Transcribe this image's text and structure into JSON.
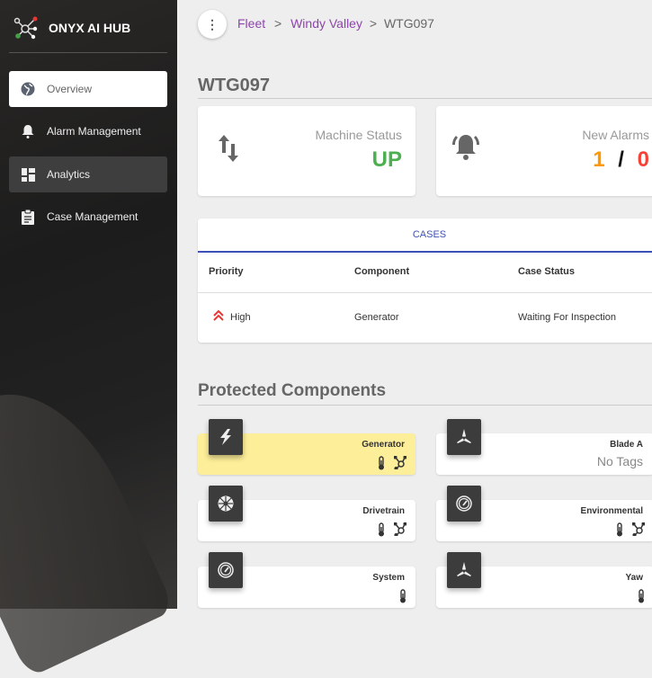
{
  "app": {
    "title": "ONYX AI HUB"
  },
  "sidebar": {
    "items": [
      {
        "label": "Overview",
        "icon": "globe-icon",
        "active": true
      },
      {
        "label": "Alarm Management",
        "icon": "bell-icon"
      },
      {
        "label": "Analytics",
        "icon": "dashboard-icon"
      },
      {
        "label": "Case Management",
        "icon": "clipboard-icon"
      }
    ]
  },
  "breadcrumb": {
    "menu": "⋮",
    "items": [
      "Fleet",
      "Windy Valley",
      "WTG097"
    ],
    "separator": ">"
  },
  "page": {
    "title": "WTG097"
  },
  "status": {
    "machine_label": "Machine Status",
    "machine_value": "UP",
    "machine_color": "#4caf50",
    "alarms_label": "New Alarms",
    "alarms_new": "1",
    "alarms_sep": "/",
    "alarms_other": "0",
    "alarms_new_color": "#ff9800",
    "alarms_other_color": "#f44336"
  },
  "cases": {
    "tab": "CASES",
    "headers": [
      "Priority",
      "Component",
      "Case Status"
    ],
    "rows": [
      {
        "priority": "High",
        "component": "Generator",
        "status": "Waiting For Inspection"
      }
    ]
  },
  "protected": {
    "title": "Protected Components",
    "items": [
      {
        "name": "Generator",
        "icon": "lightning-icon",
        "tags": [
          "thermometer",
          "network"
        ],
        "alert": true
      },
      {
        "name": "Blade A",
        "icon": "turbine-icon",
        "no_tags": "No Tags"
      },
      {
        "name": "Drivetrain",
        "icon": "gear-wheel-icon",
        "tags": [
          "thermometer",
          "network"
        ]
      },
      {
        "name": "Environmental",
        "icon": "gauge-icon",
        "tags": [
          "thermometer",
          "network"
        ]
      },
      {
        "name": "System",
        "icon": "gauge-icon",
        "tags": [
          "thermometer"
        ]
      },
      {
        "name": "Yaw",
        "icon": "turbine-icon",
        "tags": [
          "thermometer"
        ]
      }
    ]
  }
}
